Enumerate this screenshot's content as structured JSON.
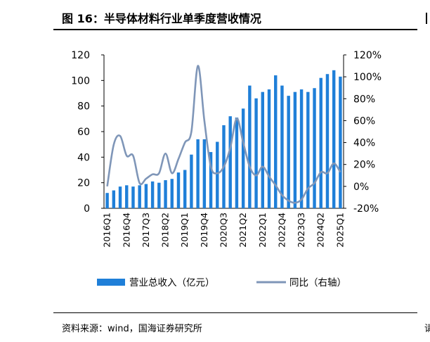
{
  "header": {
    "title": "图 16：半导体材料行业单季度营收情况"
  },
  "footer": {
    "source": "资料来源：wind，国海证券研究所",
    "right_cut": "请"
  },
  "chart_data": {
    "type": "bar",
    "title": "",
    "categories": [
      "2016Q1",
      "2016Q2",
      "2016Q3",
      "2016Q4",
      "2017Q1",
      "2017Q2",
      "2017Q3",
      "2017Q4",
      "2018Q1",
      "2018Q2",
      "2018Q3",
      "2018Q4",
      "2019Q1",
      "2019Q2",
      "2019Q3",
      "2019Q4",
      "2020Q1",
      "2020Q2",
      "2020Q3",
      "2020Q4",
      "2021Q1",
      "2021Q2",
      "2021Q3",
      "2021Q4",
      "2022Q1",
      "2022Q2",
      "2022Q3",
      "2022Q4",
      "2023Q1",
      "2023Q2",
      "2023Q3",
      "2023Q4",
      "2024Q1",
      "2024Q2",
      "2024Q3",
      "2024Q4",
      "2025Q1"
    ],
    "x_tick_labels": [
      "2016Q1",
      "2016Q4",
      "2017Q3",
      "2018Q2",
      "2019Q1",
      "2019Q4",
      "2020Q3",
      "2021Q2",
      "2022Q1",
      "2022Q4",
      "2023Q3",
      "2024Q2",
      "2025Q1"
    ],
    "series": [
      {
        "name": "营业总收入（亿元）",
        "type": "bar",
        "axis": "left",
        "color": "#1F7FD8",
        "values": [
          12,
          14,
          17,
          18,
          17,
          18,
          19,
          21,
          20,
          22,
          23,
          28,
          30,
          42,
          54,
          54,
          44,
          52,
          65,
          72,
          71,
          78,
          96,
          86,
          91,
          93,
          104,
          96,
          88,
          91,
          93,
          91,
          94,
          102,
          105,
          108,
          103
        ]
      },
      {
        "name": "同比（右轴）",
        "type": "line",
        "axis": "right",
        "color": "#7F96B8",
        "values": [
          0.0,
          0.38,
          0.46,
          0.28,
          0.28,
          0.03,
          0.07,
          0.11,
          0.12,
          0.3,
          0.12,
          0.25,
          0.4,
          0.5,
          1.1,
          0.6,
          0.18,
          0.12,
          0.18,
          0.35,
          0.62,
          0.4,
          0.18,
          0.1,
          0.18,
          0.09,
          0.01,
          -0.08,
          -0.13,
          -0.15,
          -0.12,
          -0.02,
          0.03,
          0.13,
          0.12,
          0.21,
          0.13
        ]
      }
    ],
    "left_axis": {
      "ticks": [
        "0",
        "20",
        "40",
        "60",
        "80",
        "100",
        "120"
      ],
      "range": [
        0,
        120
      ]
    },
    "right_axis": {
      "ticks": [
        "-20%",
        "0%",
        "20%",
        "40%",
        "60%",
        "80%",
        "100%",
        "120%"
      ],
      "range": [
        -0.2,
        1.2
      ]
    },
    "xlabel": "",
    "ylabel": "",
    "legend": {
      "position": "bottom"
    }
  }
}
